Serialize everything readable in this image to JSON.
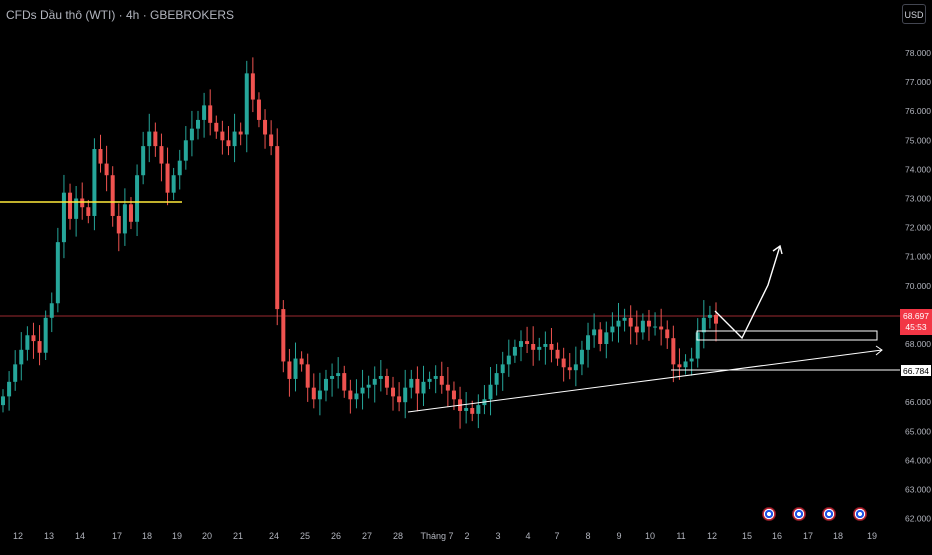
{
  "header": {
    "title": "CFDs Dầu thô (WTI) · 4h · GBEBROKERS",
    "currency_button": "USD"
  },
  "price_axis": {
    "ticks": [
      "78.000",
      "77.000",
      "76.000",
      "75.000",
      "74.000",
      "73.000",
      "72.000",
      "71.000",
      "70.000",
      "69.000",
      "68.000",
      "67.000",
      "66.000",
      "65.000",
      "64.000",
      "63.000",
      "62.000"
    ]
  },
  "time_axis": {
    "ticks": [
      "12",
      "13",
      "14",
      "17",
      "18",
      "19",
      "20",
      "21",
      "24",
      "25",
      "26",
      "27",
      "28",
      "Tháng 7",
      "2",
      "3",
      "4",
      "7",
      "8",
      "9",
      "10",
      "11",
      "12",
      "15",
      "16",
      "17",
      "18",
      "19"
    ]
  },
  "price_tags": {
    "current_price": "68.697",
    "countdown": "45:53",
    "marked_level": "66.784"
  },
  "events": {
    "icon": "us-flag-icon",
    "count": 4
  },
  "colors": {
    "background": "#000000",
    "up_candle": "#26a69a",
    "down_candle": "#ef5350",
    "current_price_tag": "#f23645",
    "horizontal_line": "#ffeb3b",
    "drawings": "#ffffff",
    "axis_text": "#b2b5be"
  },
  "chart_data": {
    "type": "candlestick",
    "title": "CFDs Dầu thô (WTI) · 4h · GBEBROKERS",
    "ylim": [
      61.6,
      78.7
    ],
    "closes": [
      66.2,
      66.7,
      67.3,
      67.8,
      68.3,
      68.1,
      67.7,
      68.9,
      69.4,
      71.5,
      73.2,
      72.3,
      73.0,
      72.7,
      72.4,
      74.7,
      74.2,
      73.8,
      72.4,
      71.8,
      72.8,
      72.2,
      73.8,
      74.8,
      75.3,
      74.8,
      74.2,
      73.2,
      73.8,
      74.3,
      75.0,
      75.4,
      75.7,
      76.2,
      75.6,
      75.3,
      75.0,
      74.8,
      75.3,
      75.2,
      77.3,
      76.4,
      75.7,
      75.2,
      74.8,
      69.2,
      67.4,
      66.8,
      67.5,
      67.3,
      66.5,
      66.1,
      66.4,
      66.8,
      66.9,
      67.0,
      66.4,
      66.1,
      66.3,
      66.5,
      66.6,
      66.8,
      66.9,
      66.5,
      66.2,
      66.0,
      66.5,
      66.8,
      66.3,
      66.7,
      66.8,
      66.9,
      66.6,
      66.4,
      66.1,
      65.7,
      65.8,
      65.6,
      65.9,
      66.1,
      66.6,
      67.0,
      67.3,
      67.6,
      67.9,
      68.1,
      68.0,
      67.8,
      67.9,
      68.0,
      67.8,
      67.5,
      67.2,
      67.1,
      67.3,
      67.8,
      68.3,
      68.5,
      68.0,
      68.4,
      68.6,
      68.8,
      68.9,
      68.6,
      68.4,
      68.8,
      68.6,
      68.6,
      68.5,
      68.2,
      67.3,
      67.2,
      67.4,
      67.5,
      68.4,
      68.9,
      69.0,
      68.7
    ],
    "horizontal_line": 72.8,
    "marked_level": 66.784,
    "current_price": 68.697
  }
}
